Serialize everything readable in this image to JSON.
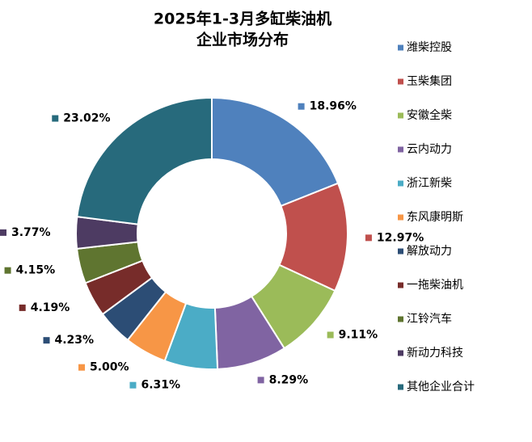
{
  "chart_data": {
    "type": "donut",
    "title": [
      "2025年1-3月多缸柴油机",
      "企业市场分布"
    ],
    "categories": [
      "潍柴控股",
      "玉柴集团",
      "安徽全柴",
      "云内动力",
      "浙江新柴",
      "东风康明斯",
      "解放动力",
      "一拖柴油机",
      "江铃汽车",
      "新动力科技",
      "其他企业合计"
    ],
    "values": [
      18.96,
      12.97,
      9.11,
      8.29,
      6.31,
      5.0,
      4.23,
      4.19,
      4.15,
      3.77,
      23.02
    ],
    "value_labels": [
      "18.96%",
      "12.97%",
      "9.11%",
      "8.29%",
      "6.31%",
      "5.00%",
      "4.23%",
      "4.19%",
      "4.15%",
      "3.77%",
      "23.02%"
    ],
    "colors": [
      "#4f81bd",
      "#c0504d",
      "#9bbb59",
      "#8064a2",
      "#4bacc6",
      "#f79646",
      "#2c4d75",
      "#772c2a",
      "#5f7530",
      "#4d3b62",
      "#276a7c"
    ],
    "legend": "right"
  }
}
